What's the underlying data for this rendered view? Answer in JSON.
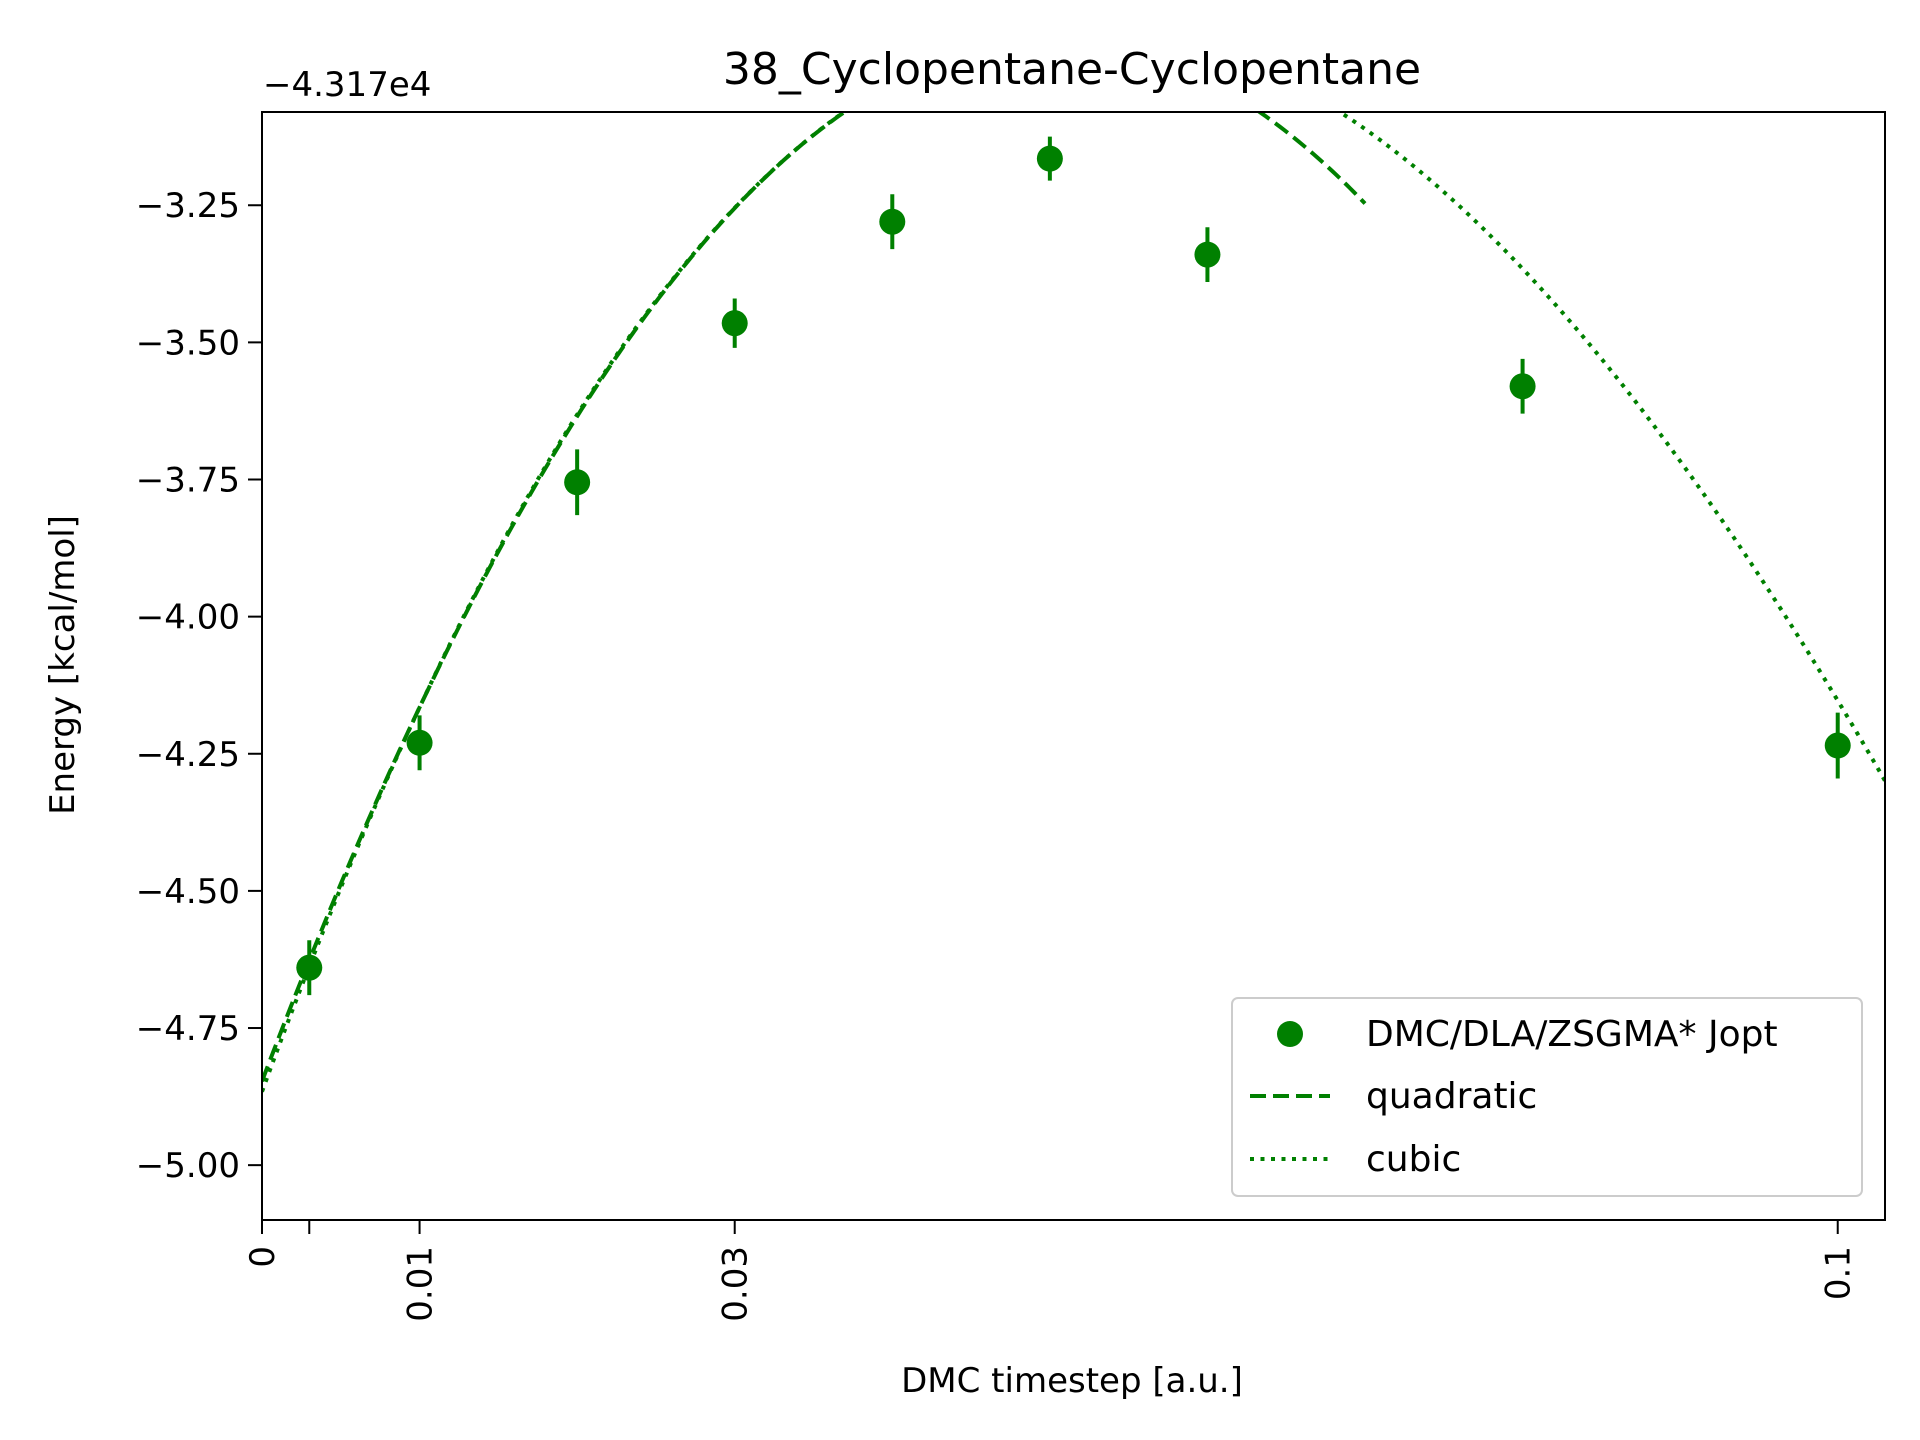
{
  "chart_data": {
    "type": "scatter",
    "title": "38_Cyclopentane-Cyclopentane",
    "xlabel": "DMC timestep [a.u.]",
    "ylabel": "Energy [kcal/mol]",
    "y_offset_label": "−4.317e4",
    "xlim": [
      0,
      0.103
    ],
    "ylim": [
      -5.1,
      -3.08
    ],
    "x_ticks": [
      {
        "value": 0,
        "label": "0"
      },
      {
        "value": 0.003,
        "label": ""
      },
      {
        "value": 0.01,
        "label": "0.01"
      },
      {
        "value": 0.03,
        "label": "0.03"
      },
      {
        "value": 0.1,
        "label": "0.1"
      }
    ],
    "y_ticks": [
      {
        "value": -3.25,
        "label": "−3.25"
      },
      {
        "value": -3.5,
        "label": "−3.50"
      },
      {
        "value": -3.75,
        "label": "−3.75"
      },
      {
        "value": -4.0,
        "label": "−4.00"
      },
      {
        "value": -4.25,
        "label": "−4.25"
      },
      {
        "value": -4.5,
        "label": "−4.50"
      },
      {
        "value": -4.75,
        "label": "−4.75"
      },
      {
        "value": -5.0,
        "label": "−5.00"
      }
    ],
    "legend_position": "lower right",
    "color": "#008000",
    "series": [
      {
        "name": "DMC/DLA/ZSGMA* Jopt",
        "kind": "errorbar",
        "points": [
          {
            "x": 0.003,
            "y": -4.64,
            "err": 0.05
          },
          {
            "x": 0.01,
            "y": -4.23,
            "err": 0.05
          },
          {
            "x": 0.02,
            "y": -3.755,
            "err": 0.06
          },
          {
            "x": 0.03,
            "y": -3.465,
            "err": 0.045
          },
          {
            "x": 0.04,
            "y": -3.28,
            "err": 0.05
          },
          {
            "x": 0.05,
            "y": -3.165,
            "err": 0.04
          },
          {
            "x": 0.06,
            "y": -3.34,
            "err": 0.05
          },
          {
            "x": 0.08,
            "y": -3.58,
            "err": 0.05
          },
          {
            "x": 0.1,
            "y": -4.235,
            "err": 0.06
          }
        ]
      },
      {
        "name": "quadratic",
        "kind": "dashed",
        "x_range": [
          0,
          0.07
        ],
        "coefficients": [
          -4.847,
          75.71,
          -755.0
        ]
      },
      {
        "name": "cubic",
        "kind": "dotted",
        "x_range": [
          0,
          0.103
        ],
        "coefficients": [
          -4.866,
          78.73,
          -884.5,
          1685.0
        ]
      }
    ]
  }
}
